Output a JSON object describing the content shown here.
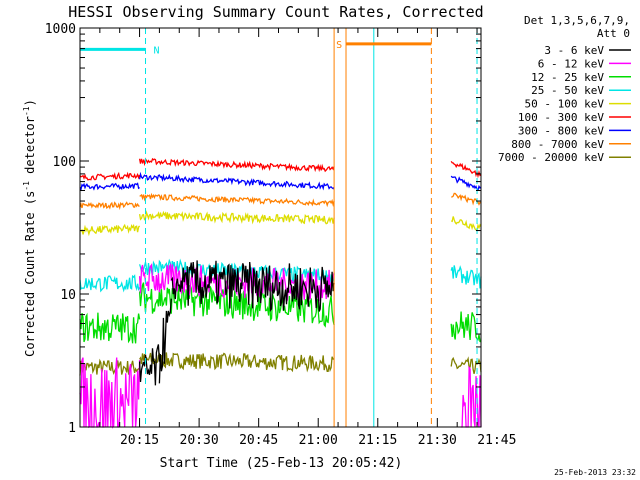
{
  "chart_data": {
    "type": "line",
    "title": "HESSI Observing Summary Count Rates, Corrected",
    "xlabel": "Start Time (25-Feb-13 20:05:42)",
    "ylabel_main": "Corrected Count Rate (s",
    "ylabel_sup1": "-1",
    "ylabel_mid": " detector",
    "ylabel_sup2": "-1",
    "ylabel_end": ")",
    "yscale": "log",
    "ylim": [
      1,
      1000
    ],
    "xlim_minutes": [
      0,
      101
    ],
    "y_ticks": [
      {
        "value": 1,
        "label": "1"
      },
      {
        "value": 10,
        "label": "10"
      },
      {
        "value": 100,
        "label": "100"
      },
      {
        "value": 1000,
        "label": "1000"
      }
    ],
    "x_ticks": [
      {
        "minute": 15,
        "label": "20:15"
      },
      {
        "minute": 30,
        "label": "20:30"
      },
      {
        "minute": 45,
        "label": "20:45"
      },
      {
        "minute": 60,
        "label": "21:00"
      },
      {
        "minute": 75,
        "label": "21:15"
      },
      {
        "minute": 90,
        "label": "21:30"
      },
      {
        "minute": 105,
        "label": "21:45"
      }
    ],
    "grid": false,
    "legend_header": [
      "Det 1,3,5,6,7,9,",
      "Att 0"
    ],
    "legend_placement": "right",
    "series": [
      {
        "name": "3 - 6 keV",
        "color": "#000000",
        "segments": [
          {
            "x0": 15,
            "x1": 20,
            "v0": 2.3,
            "v1": 2.8,
            "jitter": 0.18
          },
          {
            "x0": 20,
            "x1": 23,
            "v0": 3.2,
            "v1": 6.5,
            "jitter": 0.2
          },
          {
            "x0": 23,
            "x1": 27,
            "v0": 10.5,
            "v1": 13.5,
            "jitter": 0.1
          },
          {
            "x0": 27,
            "x1": 64,
            "v0": 12,
            "v1": 11,
            "jitter": 0.18
          }
        ]
      },
      {
        "name": "6 - 12 keV",
        "color": "#ff00ff",
        "segments": [
          {
            "x0": 0,
            "x1": 15,
            "v0": 1.4,
            "v1": 1.4,
            "jitter": 0.4
          },
          {
            "x0": 15,
            "x1": 64,
            "v0": 13,
            "v1": 11.5,
            "jitter": 0.12
          },
          {
            "x0": 96,
            "x1": 101,
            "v0": 1.4,
            "v1": 1.4,
            "jitter": 0.4
          }
        ]
      },
      {
        "name": "12 - 25 keV",
        "color": "#00dd00",
        "segments": [
          {
            "x0": 0,
            "x1": 15,
            "v0": 5.6,
            "v1": 5.6,
            "jitter": 0.12
          },
          {
            "x0": 15,
            "x1": 64,
            "v0": 9.5,
            "v1": 7.4,
            "jitter": 0.12
          },
          {
            "x0": 93.5,
            "x1": 101,
            "v0": 6,
            "v1": 5.5,
            "jitter": 0.12
          }
        ]
      },
      {
        "name": "25 - 50 keV",
        "color": "#00e5e5",
        "segments": [
          {
            "x0": 0,
            "x1": 15,
            "v0": 12,
            "v1": 12,
            "jitter": 0.06
          },
          {
            "x0": 15,
            "x1": 64,
            "v0": 16,
            "v1": 13.5,
            "jitter": 0.06
          },
          {
            "x0": 93.5,
            "x1": 101,
            "v0": 14.5,
            "v1": 12.5,
            "jitter": 0.06
          }
        ]
      },
      {
        "name": "50 - 100 keV",
        "color": "#dddd00",
        "segments": [
          {
            "x0": 0,
            "x1": 15,
            "v0": 30,
            "v1": 31,
            "jitter": 0.03
          },
          {
            "x0": 15,
            "x1": 64,
            "v0": 39,
            "v1": 36,
            "jitter": 0.03
          },
          {
            "x0": 93.5,
            "x1": 101,
            "v0": 37,
            "v1": 31,
            "jitter": 0.03
          }
        ]
      },
      {
        "name": "100 - 300 keV",
        "color": "#ff0000",
        "segments": [
          {
            "x0": 0,
            "x1": 15,
            "v0": 75,
            "v1": 78,
            "jitter": 0.02
          },
          {
            "x0": 15,
            "x1": 64,
            "v0": 100,
            "v1": 87,
            "jitter": 0.02
          },
          {
            "x0": 93.5,
            "x1": 101,
            "v0": 98,
            "v1": 78,
            "jitter": 0.02
          }
        ]
      },
      {
        "name": "300 - 800 keV",
        "color": "#0000ff",
        "segments": [
          {
            "x0": 0,
            "x1": 15,
            "v0": 64,
            "v1": 65,
            "jitter": 0.02
          },
          {
            "x0": 15,
            "x1": 64,
            "v0": 76,
            "v1": 64,
            "jitter": 0.02
          },
          {
            "x0": 93.5,
            "x1": 101,
            "v0": 75,
            "v1": 62,
            "jitter": 0.02
          }
        ]
      },
      {
        "name": "800 - 7000 keV",
        "color": "#ff8000",
        "segments": [
          {
            "x0": 0,
            "x1": 15,
            "v0": 46,
            "v1": 47,
            "jitter": 0.02
          },
          {
            "x0": 15,
            "x1": 64,
            "v0": 54,
            "v1": 48,
            "jitter": 0.02
          },
          {
            "x0": 93.5,
            "x1": 101,
            "v0": 56,
            "v1": 48,
            "jitter": 0.02
          }
        ]
      },
      {
        "name": "7000 - 20000 keV",
        "color": "#808000",
        "segments": [
          {
            "x0": 0,
            "x1": 15,
            "v0": 2.8,
            "v1": 2.8,
            "jitter": 0.06
          },
          {
            "x0": 15,
            "x1": 64,
            "v0": 3.2,
            "v1": 3.0,
            "jitter": 0.06
          },
          {
            "x0": 93.5,
            "x1": 101,
            "v0": 2.9,
            "v1": 2.8,
            "jitter": 0.06
          }
        ]
      }
    ],
    "flags": [
      {
        "label": "N",
        "color": "#00e5e5",
        "y_value": 690,
        "segments": [
          [
            0,
            16.5
          ]
        ],
        "dashed_at": [
          16.5,
          100
        ],
        "solid_at": [
          0,
          74
        ],
        "label_at": 18
      },
      {
        "label": "S",
        "color": "#ff8000",
        "y_value": 760,
        "segments": [
          [
            67,
            88.5
          ]
        ],
        "dashed_at": [
          88.5
        ],
        "solid_at": [
          64,
          67
        ],
        "label_at": 64
      }
    ],
    "gaps": [
      {
        "from": 64,
        "to": 93.5
      }
    ]
  },
  "timestamp": "25-Feb-2013 23:32"
}
